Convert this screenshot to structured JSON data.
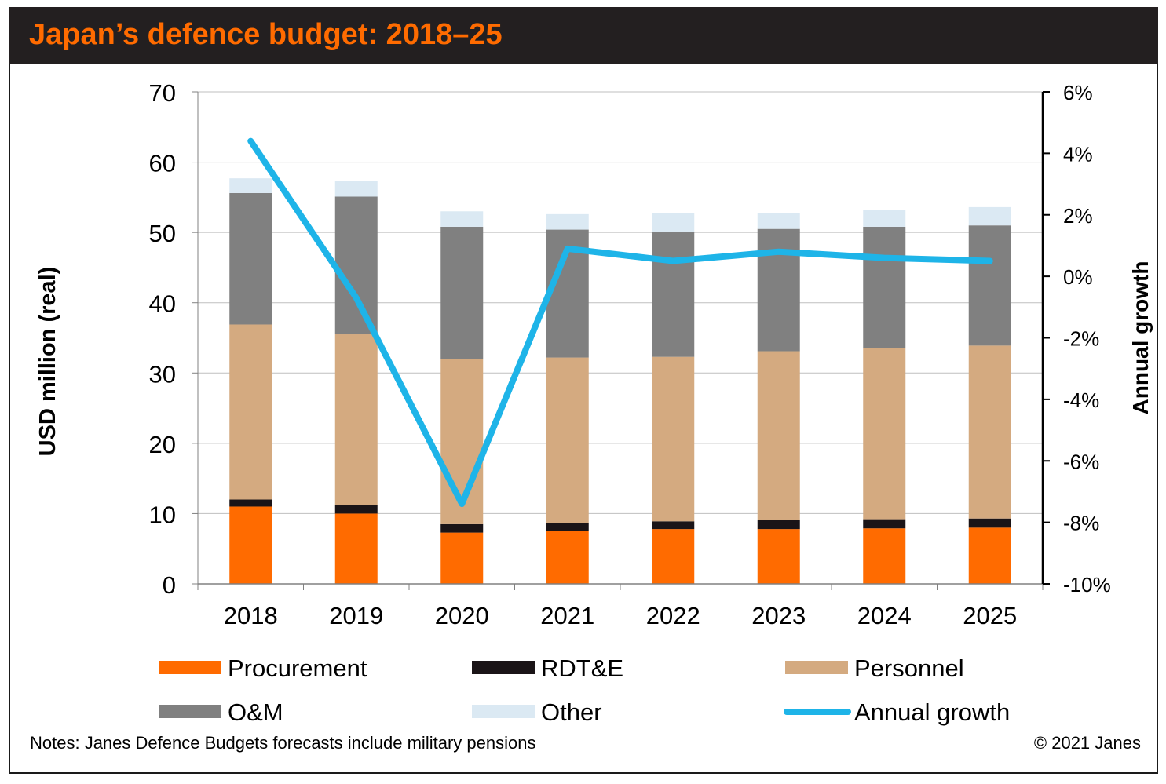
{
  "header": {
    "title": "Japan’s defence budget: 2018–25"
  },
  "footer": {
    "notes": "Notes: Janes Defence Budgets forecasts include military pensions",
    "copyright": "© 2021 Janes"
  },
  "colors": {
    "title": "#ff6b00",
    "title_bg": "#231f20",
    "procurement": "#ff6b00",
    "rdte": "#1a1417",
    "personnel": "#d4aa80",
    "om": "#808080",
    "other": "#dbe9f3",
    "growth": "#1eb4e8",
    "grid": "#bfbfbf"
  },
  "chart_data": {
    "type": "bar",
    "stacked": true,
    "title": "Japan’s defence budget: 2018–25",
    "ylabel": "USD million (real)",
    "y2label": "Annual growth",
    "ylim": [
      0,
      70
    ],
    "y2lim": [
      -10,
      6
    ],
    "yticks": [
      "0",
      "10",
      "20",
      "30",
      "40",
      "50",
      "60",
      "70"
    ],
    "y2ticks": [
      "-10%",
      "-8%",
      "-6%",
      "-4%",
      "-2%",
      "0%",
      "2%",
      "4%",
      "6%"
    ],
    "categories": [
      "2018",
      "2019",
      "2020",
      "2021",
      "2022",
      "2023",
      "2024",
      "2025"
    ],
    "series": [
      {
        "name": "Procurement",
        "key": "procurement",
        "values": [
          11.0,
          10.0,
          7.3,
          7.5,
          7.8,
          7.8,
          7.9,
          8.0
        ]
      },
      {
        "name": "RDT&E",
        "key": "rdte",
        "values": [
          1.0,
          1.2,
          1.2,
          1.1,
          1.1,
          1.3,
          1.3,
          1.3
        ]
      },
      {
        "name": "Personnel",
        "key": "personnel",
        "values": [
          24.9,
          24.3,
          23.5,
          23.6,
          23.4,
          24.0,
          24.3,
          24.6
        ]
      },
      {
        "name": "O&M",
        "key": "om",
        "values": [
          18.7,
          19.6,
          18.8,
          18.2,
          17.8,
          17.4,
          17.3,
          17.1
        ]
      },
      {
        "name": "Other",
        "key": "other",
        "values": [
          2.1,
          2.2,
          2.2,
          2.2,
          2.6,
          2.3,
          2.4,
          2.6
        ]
      }
    ],
    "line_series": {
      "name": "Annual growth",
      "axis": "right",
      "values": [
        4.4,
        -0.7,
        -7.4,
        0.9,
        0.5,
        0.8,
        0.6,
        0.5
      ]
    },
    "legend": {
      "position": "bottom",
      "entries": [
        "Procurement",
        "RDT&E",
        "Personnel",
        "O&M",
        "Other",
        "Annual growth"
      ]
    }
  }
}
